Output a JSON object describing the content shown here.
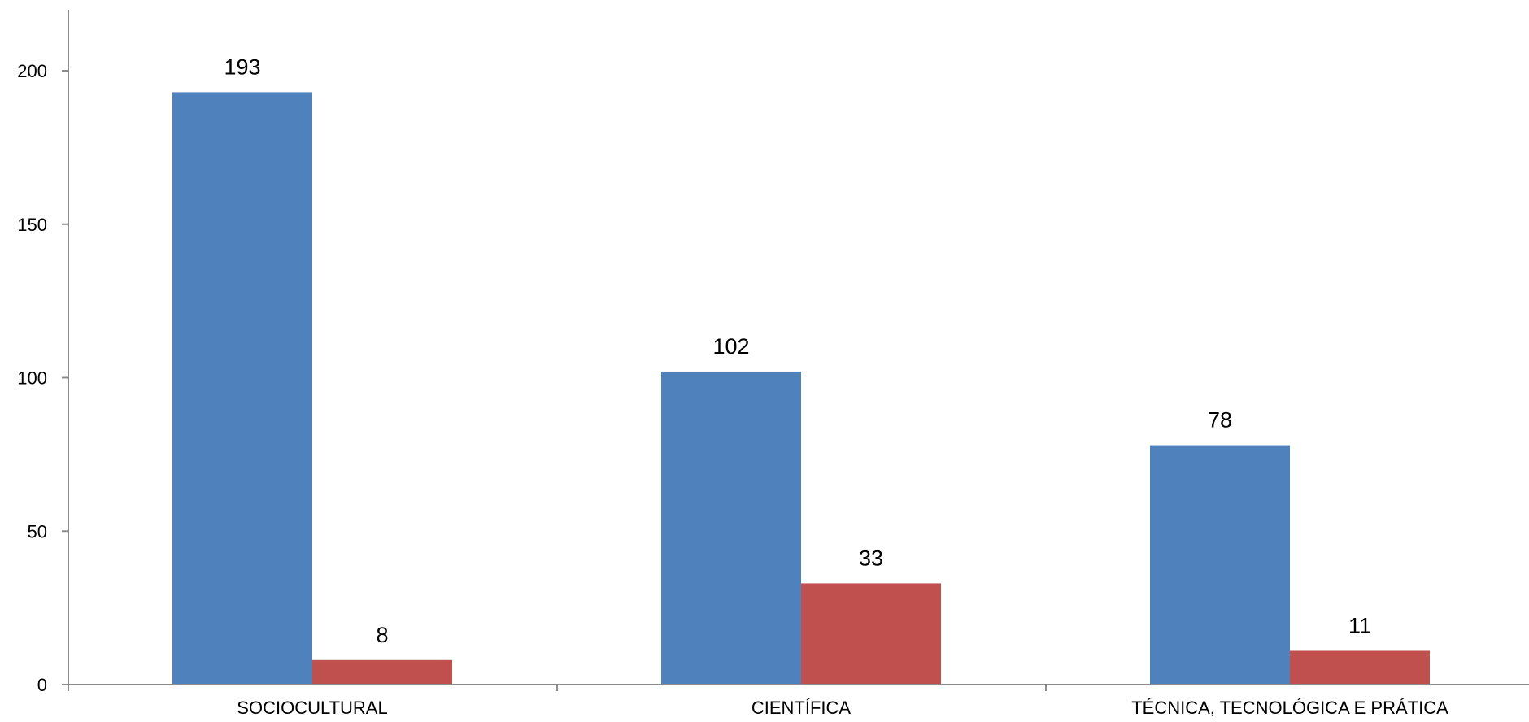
{
  "chart_data": {
    "type": "bar",
    "categories": [
      "SOCIOCULTURAL",
      "CIENTÍFICA",
      "TÉCNICA, TECNOLÓGICA E PRÁTICA"
    ],
    "series": [
      {
        "values": [
          193,
          102,
          78
        ],
        "color": "#4F81BD"
      },
      {
        "values": [
          8,
          33,
          11
        ],
        "color": "#C0504D"
      }
    ],
    "ylim": [
      0,
      200
    ],
    "yticks": [
      0,
      50,
      100,
      150,
      200
    ],
    "grid": false,
    "legend": "none",
    "data_labels": true,
    "axis_color": "#8c8c8c"
  }
}
